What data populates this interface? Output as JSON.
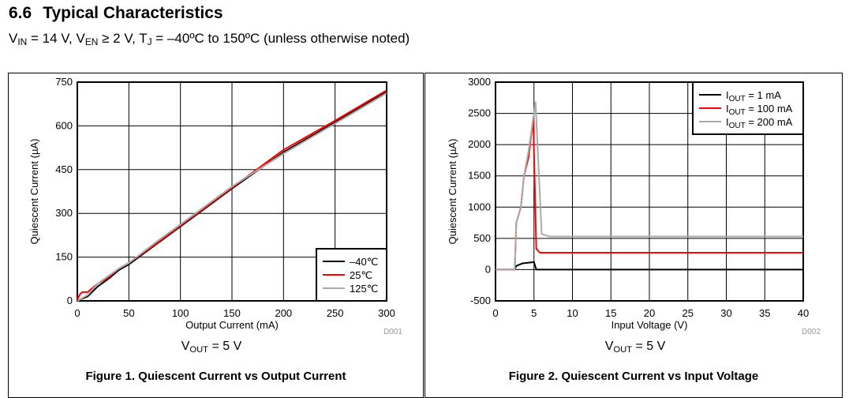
{
  "section": {
    "number": "6.6",
    "title": "Typical Characteristics"
  },
  "conditions": {
    "vin_v": "V",
    "vin_sub": "IN",
    "vin_rest": " = 14 V, ",
    "ven_v": "V",
    "ven_sub": "EN",
    "ven_rest": " ≥ 2 V, ",
    "tj_v": "T",
    "tj_sub": "J",
    "tj_rest": " = –40ºC to 150ºC (unless otherwise noted)"
  },
  "colors": {
    "black": "#000000",
    "red": "#ff0000",
    "grey": "#aaaaaa"
  },
  "chart_data": [
    {
      "type": "line",
      "id": "D001",
      "caption": "Figure 1. Quiescent Current vs Output Current",
      "note": {
        "v": "V",
        "sub": "OUT",
        "rest": " = 5 V"
      },
      "xlabel": "Output Current (mA)",
      "ylabel": "Quiescent Current (µA)",
      "xlim": [
        0,
        300
      ],
      "ylim": [
        0,
        750
      ],
      "xticks": [
        0,
        50,
        100,
        150,
        200,
        250,
        300
      ],
      "yticks": [
        0,
        150,
        300,
        450,
        600,
        750
      ],
      "grid": true,
      "legend_position": "bottom-right",
      "series": [
        {
          "name": "–40℃",
          "color": "#000000",
          "x": [
            0,
            5,
            10,
            20,
            30,
            40,
            50,
            75,
            100,
            150,
            200,
            250,
            300
          ],
          "y": [
            2,
            8,
            15,
            50,
            75,
            105,
            125,
            190,
            255,
            385,
            510,
            612,
            718
          ]
        },
        {
          "name": "25℃",
          "color": "#ff0000",
          "x": [
            0,
            3,
            5,
            10,
            20,
            30,
            40,
            50,
            75,
            100,
            150,
            200,
            250,
            300
          ],
          "y": [
            5,
            25,
            30,
            30,
            60,
            80,
            110,
            130,
            192,
            258,
            388,
            518,
            618,
            722
          ]
        },
        {
          "name": "125℃",
          "color": "#aaaaaa",
          "x": [
            0,
            5,
            10,
            20,
            30,
            40,
            50,
            75,
            100,
            150,
            200,
            250,
            300
          ],
          "y": [
            0,
            10,
            20,
            60,
            85,
            110,
            130,
            198,
            262,
            392,
            505,
            608,
            712
          ]
        }
      ]
    },
    {
      "type": "line",
      "id": "D002",
      "caption": "Figure 2. Quiescent Current vs Input Voltage",
      "note": {
        "v": "V",
        "sub": "OUT",
        "rest": " = 5 V"
      },
      "xlabel": "Input Voltage (V)",
      "ylabel": "Quiescent Current (µA)",
      "xlim": [
        0,
        40
      ],
      "ylim": [
        -500,
        3000
      ],
      "xticks": [
        0,
        5,
        10,
        15,
        20,
        25,
        30,
        35,
        40
      ],
      "yticks": [
        -500,
        0,
        500,
        1000,
        1500,
        2000,
        2500,
        3000
      ],
      "grid": true,
      "legend_position": "top-right",
      "series": [
        {
          "name": "I",
          "sub": "OUT",
          "rest": " = 1 mA",
          "color": "#000000",
          "x": [
            0,
            2.5,
            2.7,
            3.5,
            5,
            5.3,
            40
          ],
          "y": [
            0,
            0,
            60,
            100,
            120,
            0,
            0
          ]
        },
        {
          "name": "I",
          "sub": "OUT",
          "rest": " = 100 mA",
          "color": "#ff0000",
          "x": [
            0,
            2.5,
            2.7,
            3.3,
            3.7,
            4.3,
            4.9,
            5.3,
            5.8,
            40
          ],
          "y": [
            0,
            0,
            750,
            1000,
            1500,
            1800,
            2420,
            330,
            270,
            270
          ]
        },
        {
          "name": "I",
          "sub": "OUT",
          "rest": " = 200 mA",
          "color": "#aaaaaa",
          "x": [
            0,
            2.5,
            2.7,
            3.3,
            3.7,
            4.3,
            5.2,
            6,
            7,
            40
          ],
          "y": [
            0,
            0,
            750,
            1000,
            1500,
            1900,
            2680,
            570,
            530,
            530
          ]
        }
      ]
    }
  ]
}
